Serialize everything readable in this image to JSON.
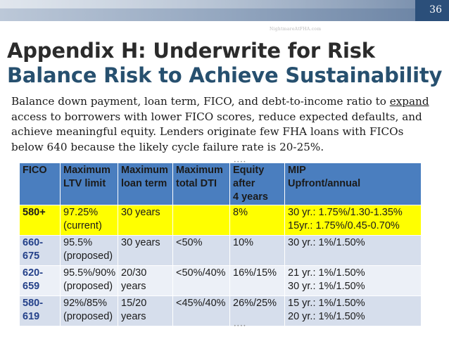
{
  "slide_number": "36",
  "watermark": "NightmareAtFHA.com",
  "title_line1": "Appendix H: Underwrite for Risk",
  "title_line2": "Balance Risk to Achieve Sustainability",
  "body": {
    "part1": "Balance down payment, loan term, FICO, and debt-to-income ratio to ",
    "underlined": "expand",
    "part2": " access to borrowers with lower FICO scores, reduce expected defaults, and achieve meaningful equity. Lenders originate few FHA loans with FICOs below 640 because the likely cycle failure rate is 20-25%."
  },
  "table": {
    "headers": [
      [
        "FICO",
        ""
      ],
      [
        "Maximum",
        "LTV limit"
      ],
      [
        "Maximum",
        "loan term"
      ],
      [
        "Maximum",
        "total DTI"
      ],
      [
        "Equity after",
        "4 years"
      ],
      [
        "MIP",
        "Upfront/annual"
      ]
    ],
    "rows": [
      [
        [
          "580+",
          ""
        ],
        [
          "97.25%",
          "(current)"
        ],
        [
          "30 years",
          ""
        ],
        [
          "",
          ""
        ],
        [
          "8%",
          ""
        ],
        [
          "30 yr.: 1.75%/1.30-1.35%",
          "15yr.: 1.75%/0.45-0.70%"
        ]
      ],
      [
        [
          "660-675",
          ""
        ],
        [
          "95.5%",
          "(proposed)"
        ],
        [
          "30 years",
          ""
        ],
        [
          "<50%",
          ""
        ],
        [
          "10%",
          ""
        ],
        [
          "30 yr.: 1%/1.50%",
          ""
        ]
      ],
      [
        [
          "620-659",
          ""
        ],
        [
          "95.5%/90%",
          "(proposed)"
        ],
        [
          "20/30",
          "years"
        ],
        [
          "<50%/40%",
          ""
        ],
        [
          "16%/15%",
          ""
        ],
        [
          "21 yr.: 1%/1.50%",
          "30 yr.: 1%/1.50%"
        ]
      ],
      [
        [
          "580-619",
          ""
        ],
        [
          "92%/85%",
          "(proposed)"
        ],
        [
          "15/20",
          "years"
        ],
        [
          "<45%/40%",
          ""
        ],
        [
          "26%/25%",
          ""
        ],
        [
          "15 yr.: 1%/1.50%",
          "20 yr.: 1%/1.50%"
        ]
      ]
    ]
  }
}
